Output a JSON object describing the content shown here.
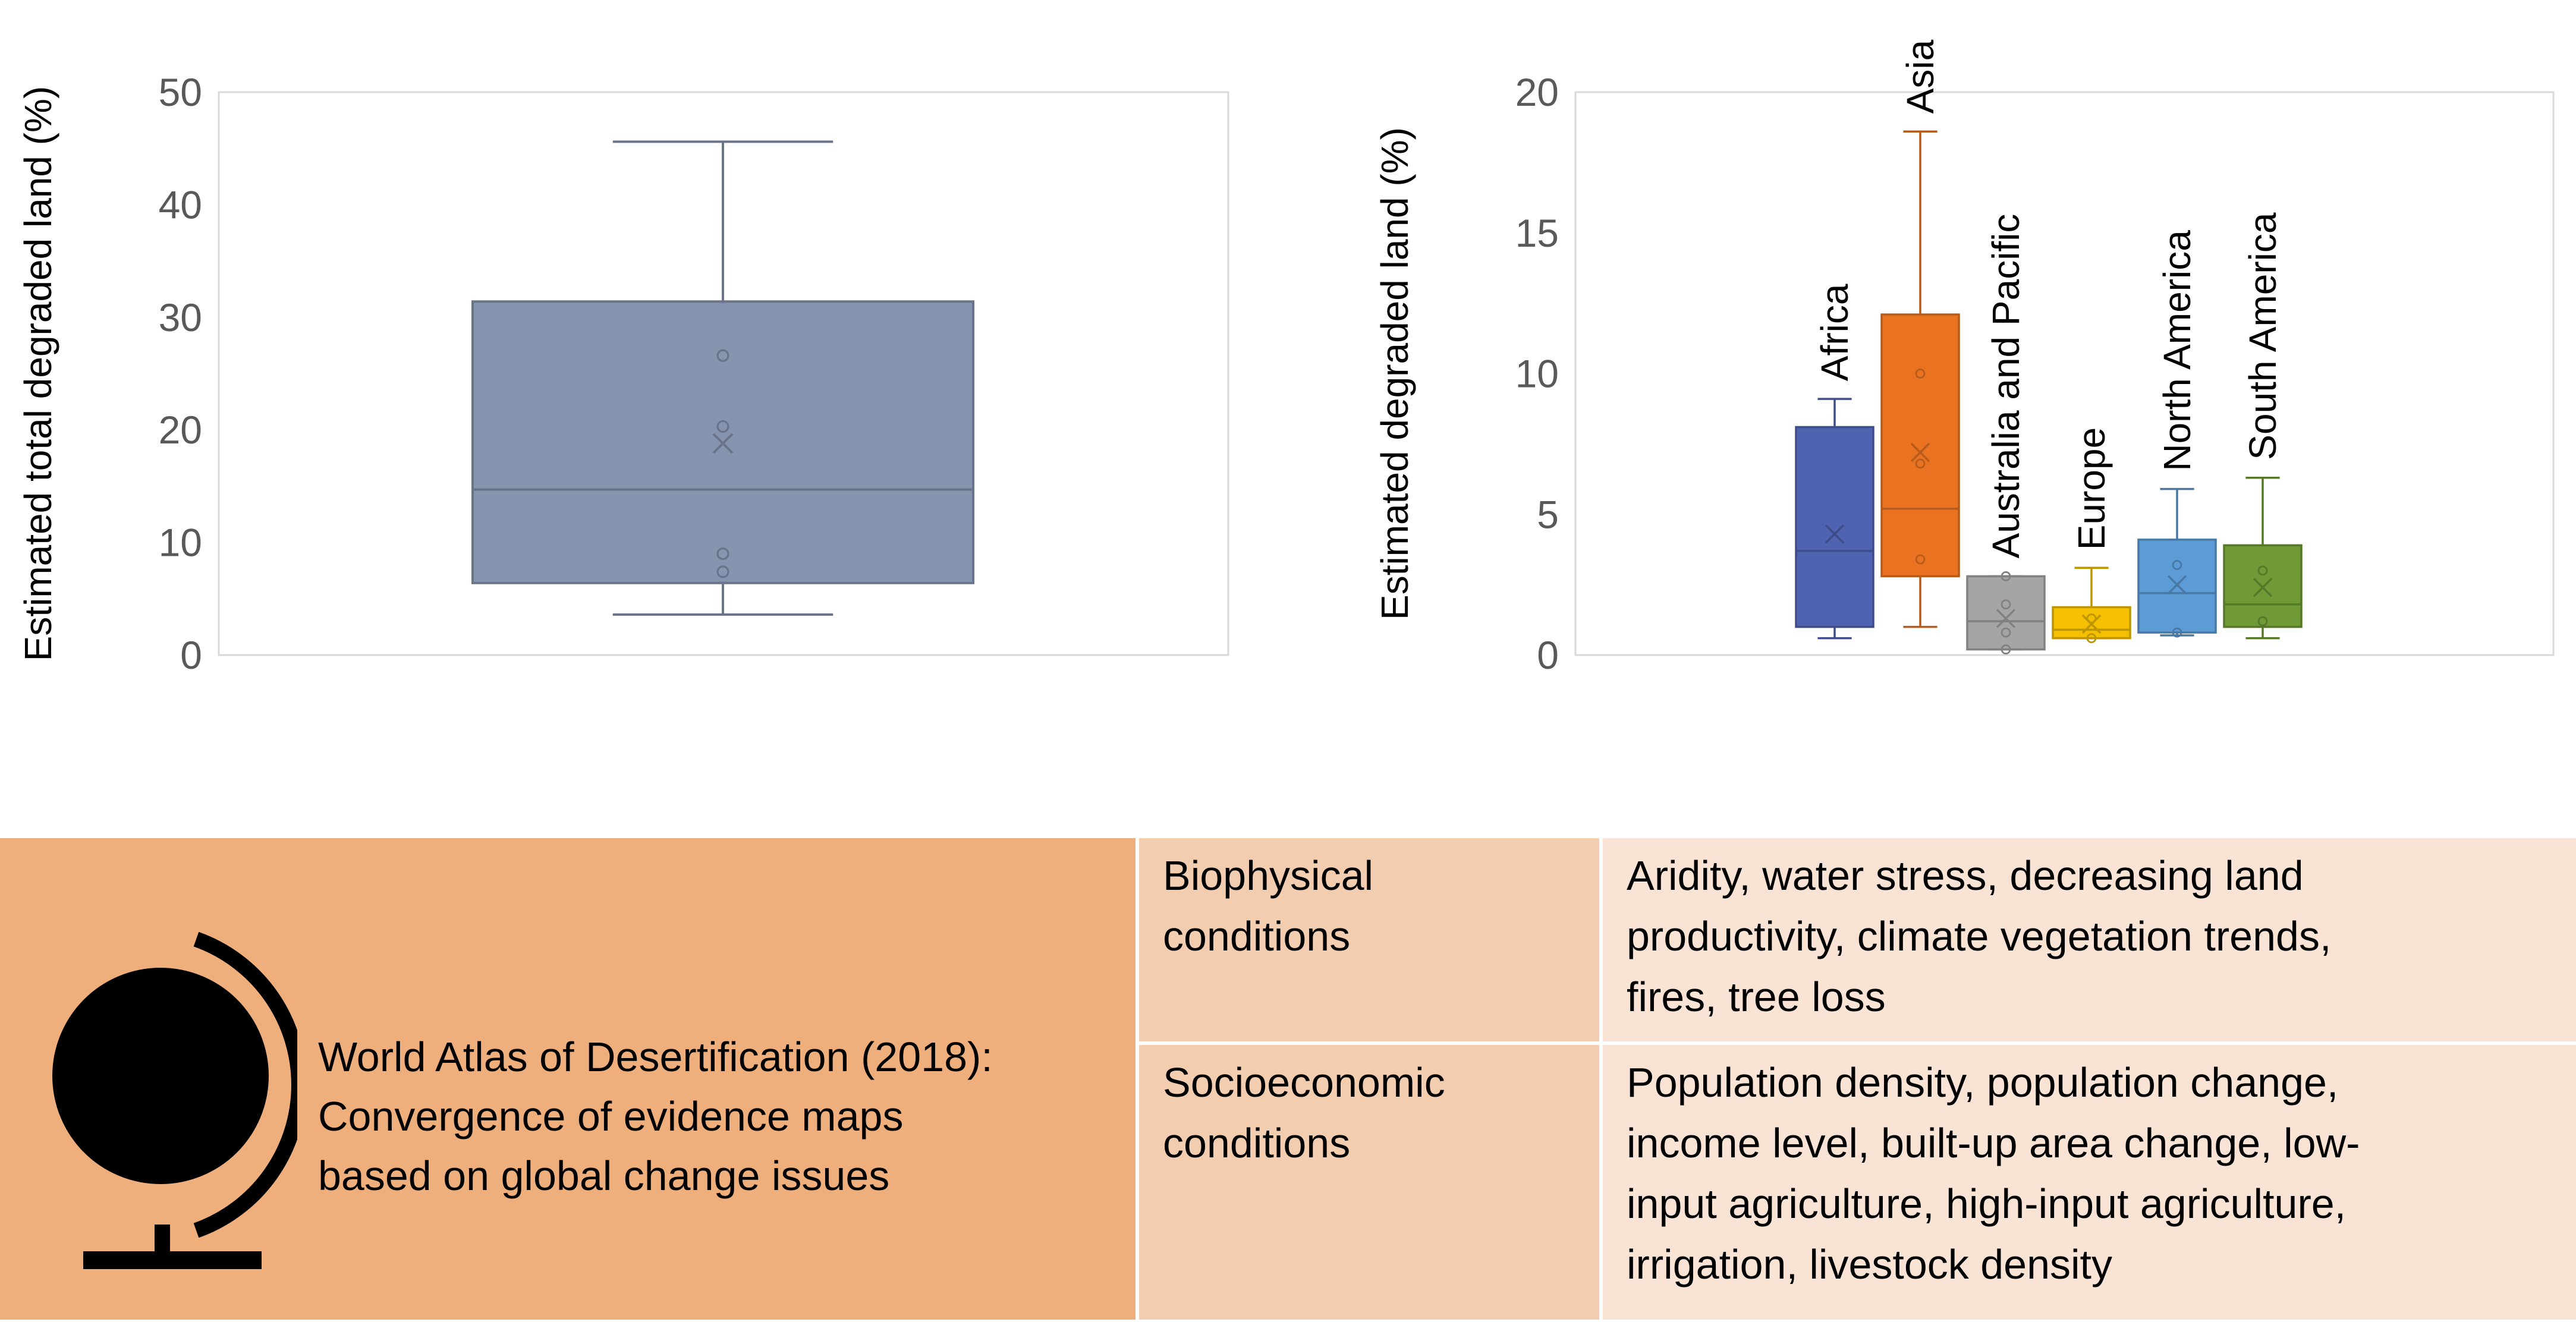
{
  "chart_data": [
    {
      "type": "box",
      "ylabel": "Estimated total degraded land  (%)",
      "ylim": [
        0,
        50
      ],
      "yticks": [
        0,
        10,
        20,
        30,
        40,
        50
      ],
      "grid": false,
      "color": "#8794af",
      "boxes": [
        {
          "min": 3.6,
          "q1": 6.4,
          "median": 14.7,
          "q3": 31.4,
          "max": 45.6,
          "mean": 18.8,
          "points": [
            7.4,
            9.0,
            20.3,
            26.6
          ]
        }
      ]
    },
    {
      "type": "box",
      "ylabel": "Estimated degraded land  (%)",
      "ylim": [
        0,
        20
      ],
      "yticks": [
        0,
        5,
        10,
        15,
        20
      ],
      "grid": false,
      "boxes": [
        {
          "category": "Africa",
          "color": "#4f63b0",
          "min": 0.6,
          "q1": 1.0,
          "median": 3.7,
          "q3": 8.1,
          "max": 9.1,
          "mean": 4.3,
          "points": []
        },
        {
          "category": "Asia",
          "color": "#ea7321",
          "min": 1.0,
          "q1": 2.8,
          "median": 5.2,
          "q3": 12.1,
          "max": 18.6,
          "mean": 7.2,
          "points": [
            3.4,
            6.8,
            10.0
          ]
        },
        {
          "category": "Australia and Pacific",
          "color": "#a5a5a5",
          "min": 0.2,
          "q1": 0.2,
          "median": 1.2,
          "q3": 2.8,
          "max": 2.8,
          "mean": 1.3,
          "points": [
            0.2,
            0.8,
            1.8,
            2.8
          ]
        },
        {
          "category": "Europe",
          "color": "#f5c000",
          "min": 0.6,
          "q1": 0.6,
          "median": 0.9,
          "q3": 1.7,
          "max": 3.1,
          "mean": 1.1,
          "points": [
            0.6,
            1.3
          ]
        },
        {
          "category": "North America",
          "color": "#5c9bd5",
          "min": 0.7,
          "q1": 0.8,
          "median": 2.2,
          "q3": 4.1,
          "max": 5.9,
          "mean": 2.5,
          "points": [
            0.8,
            3.2
          ]
        },
        {
          "category": "South America",
          "color": "#6f9a35",
          "min": 0.6,
          "q1": 1.0,
          "median": 1.8,
          "q3": 3.9,
          "max": 6.3,
          "mean": 2.4,
          "points": [
            1.2,
            3.0
          ]
        }
      ]
    }
  ],
  "panel": {
    "title": "World Atlas of Desertification (2018):\nConvergence of evidence maps\nbased on global change issues",
    "icon": "globe-icon",
    "rows": [
      {
        "category": "Biophysical\nconditions",
        "description": "Aridity, water stress, decreasing land\nproductivity, climate vegetation trends,\nfires, tree loss"
      },
      {
        "category": "Socioeconomic\nconditions",
        "description": "Population density, population change,\nincome level, built-up area change, low-\ninput agriculture, high-input agriculture,\nirrigation, livestock density"
      }
    ],
    "colors": {
      "title_cell": "#eeaf7d",
      "category_cell": "#f3cdb0",
      "description_cell": "#f9e3d4"
    }
  }
}
